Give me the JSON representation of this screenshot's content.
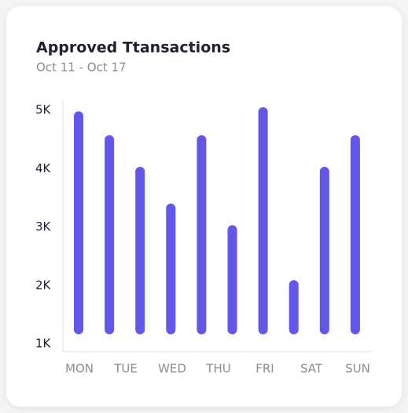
{
  "chart_data": {
    "type": "bar",
    "title": "Approved Ttansactions",
    "subtitle": "Oct 11 - Oct 17",
    "categories": [
      null,
      null,
      null,
      null,
      null,
      null,
      null,
      null,
      null,
      null
    ],
    "xtick_labels": [
      "MON",
      "TUE",
      "WED",
      "THU",
      "FRI",
      "SAT",
      "SUN"
    ],
    "values": [
      4980,
      4570,
      4030,
      3400,
      4570,
      3030,
      5050,
      2090,
      4030,
      4570
    ],
    "color": "#6157e8",
    "ylim": [
      1000,
      5000
    ],
    "yticks": [
      {
        "value": 1000,
        "label": "1K"
      },
      {
        "value": 2000,
        "label": "2K"
      },
      {
        "value": 3000,
        "label": "3K"
      },
      {
        "value": 4000,
        "label": "4K"
      },
      {
        "value": 5000,
        "label": "5K"
      }
    ],
    "grid": false
  }
}
